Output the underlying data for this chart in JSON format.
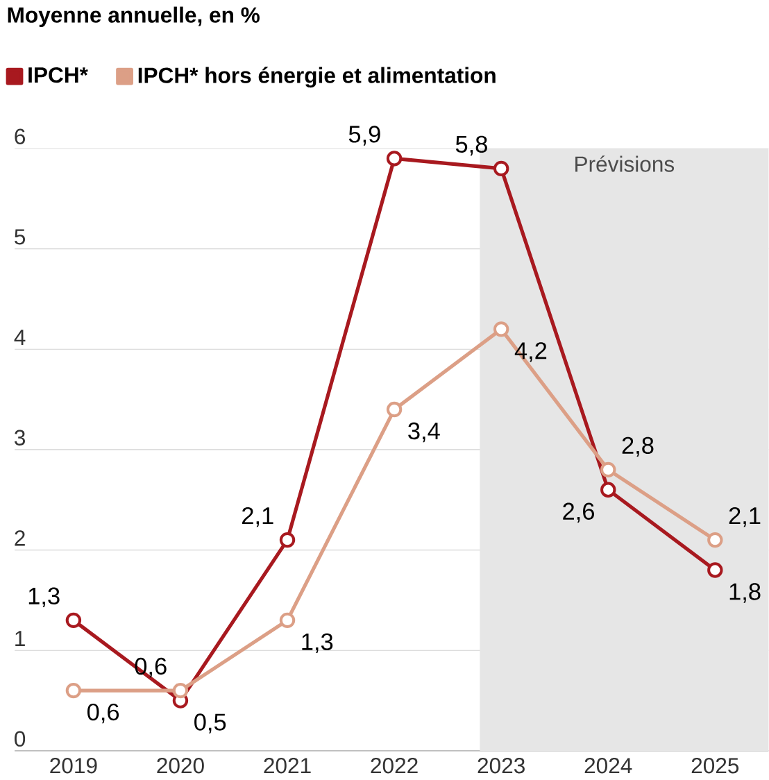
{
  "chart_data": {
    "type": "line",
    "title": "Moyenne annuelle, en %",
    "x": [
      2019,
      2020,
      2021,
      2022,
      2023,
      2024,
      2025
    ],
    "xlim": [
      2018.45,
      2025.5
    ],
    "xticks": [
      2019,
      2020,
      2021,
      2022,
      2023,
      2024,
      2025
    ],
    "ylim": [
      0,
      6
    ],
    "yticks": [
      0,
      1,
      2,
      3,
      4,
      5,
      6
    ],
    "grid": "y",
    "legend": "top",
    "marker": "circle",
    "line_style": "solid",
    "series": [
      {
        "name": "IPCH*",
        "color": "#a8191f",
        "values": [
          1.3,
          0.5,
          2.1,
          5.9,
          5.8,
          2.6,
          1.8
        ],
        "value_labels": [
          "1,3",
          "0,5",
          "2,1",
          "5,9",
          "5,8",
          "2,6",
          "1,8"
        ]
      },
      {
        "name": "IPCH* hors énergie et alimentation",
        "color": "#dc9f86",
        "values": [
          0.6,
          0.6,
          1.3,
          3.4,
          4.2,
          2.8,
          2.1
        ],
        "value_labels": [
          "0,6",
          "0,6",
          "1,3",
          "3,4",
          "4,2",
          "2,8",
          "2,1"
        ]
      }
    ],
    "bands": [
      {
        "axis": "x",
        "from": 2022.8,
        "to": 2025.5,
        "label": "Prévisions",
        "color": "#e6e6e6"
      }
    ]
  }
}
